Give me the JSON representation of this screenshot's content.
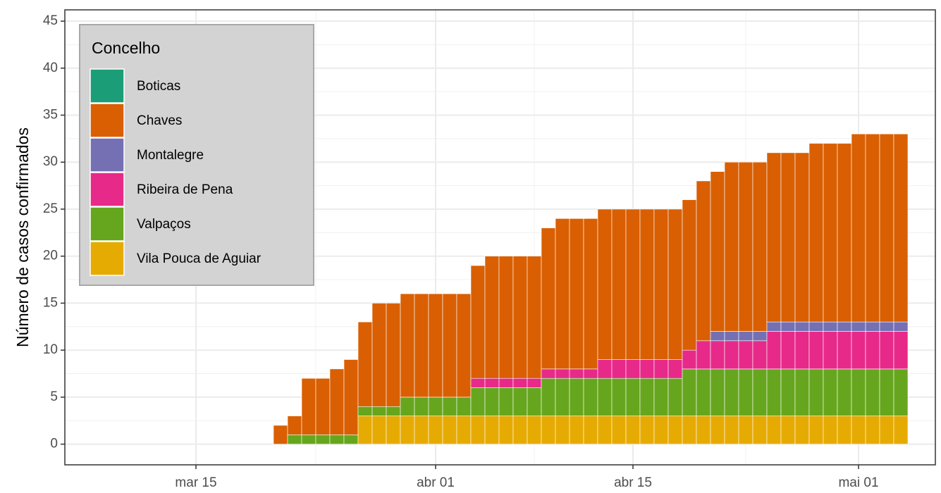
{
  "chart_data": {
    "type": "bar",
    "stacked": true,
    "y_label": "Número de casos confirmados",
    "legend_title": "Concelho",
    "legend_position": "top-left",
    "x": [
      "mar 09",
      "mar 10",
      "mar 11",
      "mar 12",
      "mar 13",
      "mar 14",
      "mar 15",
      "mar 16",
      "mar 17",
      "mar 18",
      "mar 19",
      "mar 20",
      "mar 21",
      "mar 22",
      "mar 23",
      "mar 24",
      "mar 25",
      "mar 26",
      "mar 27",
      "mar 28",
      "mar 29",
      "mar 30",
      "mar 31",
      "abr 01",
      "abr 02",
      "abr 03",
      "abr 04",
      "abr 05",
      "abr 06",
      "abr 07",
      "abr 08",
      "abr 09",
      "abr 10",
      "abr 11",
      "abr 12",
      "abr 13",
      "abr 14",
      "abr 15",
      "abr 16",
      "abr 17",
      "abr 18",
      "abr 19",
      "abr 20",
      "abr 21",
      "abr 22",
      "abr 23",
      "abr 24",
      "abr 25",
      "abr 26",
      "abr 27",
      "abr 28",
      "abr 29",
      "abr 30",
      "mai 01",
      "mai 02",
      "mai 03",
      "mai 04"
    ],
    "xticks": [
      "mar 15",
      "abr 01",
      "abr 15",
      "mai 01"
    ],
    "ylim": [
      -2.2,
      46.2
    ],
    "yticks": [
      0,
      5,
      10,
      15,
      20,
      25,
      30,
      35,
      40,
      45
    ],
    "grid": true,
    "series": [
      {
        "name": "Boticas",
        "color": "#1b9e77",
        "values": [
          0,
          0,
          0,
          0,
          0,
          0,
          0,
          0,
          0,
          0,
          0,
          0,
          0,
          0,
          0,
          0,
          0,
          0,
          0,
          0,
          0,
          0,
          0,
          0,
          0,
          0,
          0,
          0,
          0,
          0,
          0,
          0,
          0,
          0,
          0,
          0,
          0,
          0,
          0,
          0,
          0,
          0,
          0,
          0,
          0,
          0,
          0,
          0,
          0,
          0,
          0,
          0,
          0,
          0,
          0,
          0,
          0
        ]
      },
      {
        "name": "Chaves",
        "color": "#d95f02",
        "values": [
          0,
          0,
          0,
          0,
          0,
          0,
          0,
          0,
          0,
          0,
          0,
          0,
          2,
          2,
          6,
          6,
          7,
          8,
          9,
          11,
          11,
          11,
          11,
          11,
          11,
          11,
          12,
          13,
          13,
          13,
          13,
          15,
          16,
          16,
          16,
          16,
          16,
          16,
          16,
          16,
          16,
          16,
          17,
          17,
          18,
          18,
          18,
          18,
          18,
          18,
          19,
          19,
          19,
          20,
          20,
          20,
          20
        ]
      },
      {
        "name": "Montalegre",
        "color": "#7570b3",
        "values": [
          0,
          0,
          0,
          0,
          0,
          0,
          0,
          0,
          0,
          0,
          0,
          0,
          0,
          0,
          0,
          0,
          0,
          0,
          0,
          0,
          0,
          0,
          0,
          0,
          0,
          0,
          0,
          0,
          0,
          0,
          0,
          0,
          0,
          0,
          0,
          0,
          0,
          0,
          0,
          0,
          0,
          0,
          0,
          1,
          1,
          1,
          1,
          1,
          1,
          1,
          1,
          1,
          1,
          1,
          1,
          1,
          1
        ]
      },
      {
        "name": "Ribeira de Pena",
        "color": "#e7298a",
        "values": [
          0,
          0,
          0,
          0,
          0,
          0,
          0,
          0,
          0,
          0,
          0,
          0,
          0,
          0,
          0,
          0,
          0,
          0,
          0,
          0,
          0,
          0,
          0,
          0,
          0,
          0,
          1,
          1,
          1,
          1,
          1,
          1,
          1,
          1,
          1,
          2,
          2,
          2,
          2,
          2,
          2,
          2,
          3,
          3,
          3,
          3,
          3,
          4,
          4,
          4,
          4,
          4,
          4,
          4,
          4,
          4,
          4
        ]
      },
      {
        "name": "Valpaços",
        "color": "#66a61e",
        "values": [
          0,
          0,
          0,
          0,
          0,
          0,
          0,
          0,
          0,
          0,
          0,
          0,
          0,
          1,
          1,
          1,
          1,
          1,
          1,
          1,
          1,
          2,
          2,
          2,
          2,
          2,
          3,
          3,
          3,
          3,
          3,
          4,
          4,
          4,
          4,
          4,
          4,
          4,
          4,
          4,
          4,
          5,
          5,
          5,
          5,
          5,
          5,
          5,
          5,
          5,
          5,
          5,
          5,
          5,
          5,
          5,
          5
        ]
      },
      {
        "name": "Vila Pouca de Aguiar",
        "color": "#e6ab02",
        "values": [
          0,
          0,
          0,
          0,
          0,
          0,
          0,
          0,
          0,
          0,
          0,
          0,
          0,
          0,
          0,
          0,
          0,
          0,
          3,
          3,
          3,
          3,
          3,
          3,
          3,
          3,
          3,
          3,
          3,
          3,
          3,
          3,
          3,
          3,
          3,
          3,
          3,
          3,
          3,
          3,
          3,
          3,
          3,
          3,
          3,
          3,
          3,
          3,
          3,
          3,
          3,
          3,
          3,
          3,
          3,
          3,
          3
        ]
      }
    ]
  }
}
